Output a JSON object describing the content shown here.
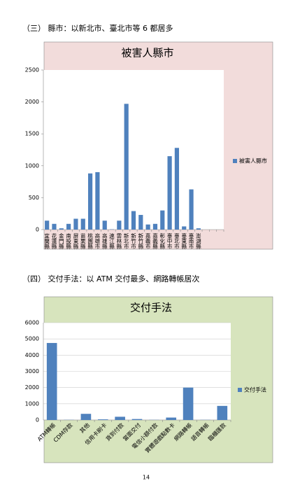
{
  "headings": [
    "（三） 縣市：以新北市、臺北市等 6 都居多",
    "（四） 交付手法：以 ATM 交付最多、網路轉帳居次"
  ],
  "page_number": "14",
  "chart_data": [
    {
      "type": "bar",
      "title": "被害人縣市",
      "background": "#f2dcdb",
      "categories": [
        "宜蘭縣",
        "花蓮縣",
        "金門縣",
        "南投縣",
        "屏東縣",
        "苗栗縣",
        "桃園縣",
        "高雄市",
        "高雄縣",
        "連江縣",
        "雲林縣",
        "新北市",
        "新竹市",
        "新竹縣",
        "嘉義市",
        "嘉義縣",
        "彰化縣",
        "臺中市",
        "臺北市",
        "臺東縣",
        "臺南市",
        "澎湖縣",
        null,
        null,
        null
      ],
      "series": [
        {
          "name": "被害人縣市",
          "color": "#4f81bd",
          "values": [
            140,
            90,
            20,
            90,
            170,
            170,
            880,
            900,
            140,
            5,
            140,
            1970,
            290,
            230,
            80,
            90,
            300,
            1150,
            1280,
            50,
            630,
            20,
            null,
            null,
            null
          ]
        }
      ],
      "ylim": [
        0,
        2500
      ],
      "yticks": [
        0,
        500,
        1000,
        1500,
        2000,
        2500
      ],
      "grid": false,
      "legend": "right"
    },
    {
      "type": "bar",
      "title": "交付手法",
      "background": "#d7e4bd",
      "categories": [
        "ATM轉帳",
        "CDM存款",
        "其他",
        "信用卡刷卡",
        "貨到付款",
        "當面交付",
        "電信小額付款",
        "實體遊戲點數卡",
        "網路轉帳",
        "語音轉帳",
        "臨櫃匯款"
      ],
      "series": [
        {
          "name": "交付手法",
          "color": "#4f81bd",
          "values": [
            4750,
            10,
            380,
            40,
            200,
            60,
            10,
            150,
            2000,
            10,
            870
          ]
        }
      ],
      "ylim": [
        0,
        6000
      ],
      "yticks": [
        0,
        1000,
        2000,
        3000,
        4000,
        5000,
        6000
      ],
      "grid": true,
      "legend": "right"
    }
  ]
}
